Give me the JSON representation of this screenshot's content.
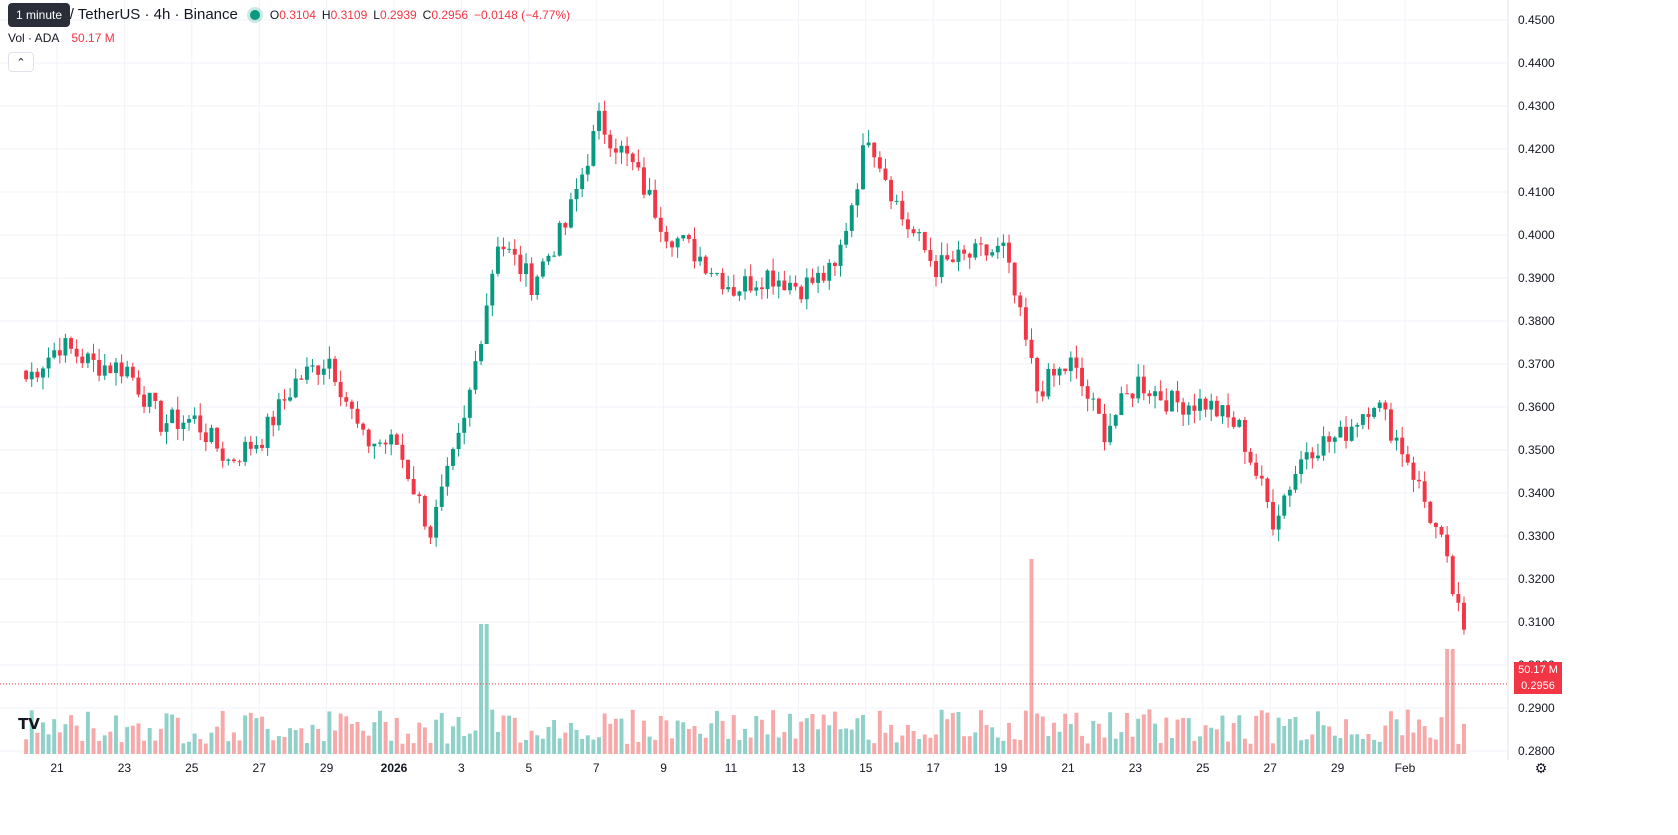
{
  "legend": {
    "symbol": "Cardano / TetherUS · 4h · Binance",
    "open_key": "O",
    "open": "0.3104",
    "high_key": "H",
    "high": "0.3109",
    "low_key": "L",
    "low": "0.2939",
    "close_key": "C",
    "close": "0.2956",
    "change": "−0.0148 (−4.77%)"
  },
  "volume_legend": {
    "label": "Vol · ADA",
    "value": "50.17 M"
  },
  "tooltip": "1 minute",
  "collapse_icon": "chevron-up-icon",
  "price_tags": {
    "volume": "50.17 M",
    "price": "0.2956"
  },
  "colors": {
    "up": "#089981",
    "down": "#f23645",
    "up_volume": "#8fd1c8",
    "down_volume": "#f7a9a9",
    "grid": "#f0f3fa",
    "axis_text": "#131722"
  },
  "chart_data": {
    "type": "candlestick",
    "symbol": "ADA/USDT",
    "interval": "4h",
    "y_axis_ticks": [
      "0.4500",
      "0.4400",
      "0.4300",
      "0.4200",
      "0.4100",
      "0.4000",
      "0.3900",
      "0.3800",
      "0.3700",
      "0.3600",
      "0.3500",
      "0.3400",
      "0.3300",
      "0.3200",
      "0.3100",
      "0.3000",
      "0.2900",
      "0.2800"
    ],
    "ylim": [
      0.28,
      0.45
    ],
    "x_axis_ticks": [
      "21",
      "23",
      "25",
      "27",
      "29",
      "2026",
      "3",
      "5",
      "7",
      "9",
      "11",
      "13",
      "15",
      "17",
      "19",
      "21",
      "23",
      "25",
      "27",
      "29",
      "Feb"
    ],
    "x_range": [
      "2025-12-20",
      "2026-02-01"
    ],
    "candles_anchor_closes": [
      {
        "date": "2025-12-20",
        "close": 0.3665
      },
      {
        "date": "2025-12-21",
        "close": 0.3745
      },
      {
        "date": "2025-12-22",
        "close": 0.37
      },
      {
        "date": "2025-12-23",
        "close": 0.369
      },
      {
        "date": "2025-12-24",
        "close": 0.3565
      },
      {
        "date": "2025-12-25",
        "close": 0.357
      },
      {
        "date": "2025-12-26",
        "close": 0.3475
      },
      {
        "date": "2025-12-27",
        "close": 0.353
      },
      {
        "date": "2025-12-28",
        "close": 0.366
      },
      {
        "date": "2025-12-29",
        "close": 0.3715
      },
      {
        "date": "2025-12-30",
        "close": 0.352
      },
      {
        "date": "2025-12-31",
        "close": 0.3515
      },
      {
        "date": "2026-01-01",
        "close": 0.331
      },
      {
        "date": "2026-01-02",
        "close": 0.356
      },
      {
        "date": "2026-01-03",
        "close": 0.399
      },
      {
        "date": "2026-01-04",
        "close": 0.389
      },
      {
        "date": "2026-01-05",
        "close": 0.402
      },
      {
        "date": "2026-01-06",
        "close": 0.4265
      },
      {
        "date": "2026-01-07",
        "close": 0.416
      },
      {
        "date": "2026-01-08",
        "close": 0.401
      },
      {
        "date": "2026-01-09",
        "close": 0.395
      },
      {
        "date": "2026-01-10",
        "close": 0.3875
      },
      {
        "date": "2026-01-11",
        "close": 0.391
      },
      {
        "date": "2026-01-12",
        "close": 0.388
      },
      {
        "date": "2026-01-13",
        "close": 0.3915
      },
      {
        "date": "2026-01-14",
        "close": 0.424
      },
      {
        "date": "2026-01-15",
        "close": 0.404
      },
      {
        "date": "2026-01-16",
        "close": 0.3925
      },
      {
        "date": "2026-01-17",
        "close": 0.395
      },
      {
        "date": "2026-01-18",
        "close": 0.3965
      },
      {
        "date": "2026-01-19",
        "close": 0.364
      },
      {
        "date": "2026-01-20",
        "close": 0.37
      },
      {
        "date": "2026-01-21",
        "close": 0.3545
      },
      {
        "date": "2026-01-22",
        "close": 0.366
      },
      {
        "date": "2026-01-23",
        "close": 0.361
      },
      {
        "date": "2026-01-24",
        "close": 0.361
      },
      {
        "date": "2026-01-25",
        "close": 0.355
      },
      {
        "date": "2026-01-26",
        "close": 0.334
      },
      {
        "date": "2026-01-27",
        "close": 0.3505
      },
      {
        "date": "2026-01-28",
        "close": 0.353
      },
      {
        "date": "2026-01-29",
        "close": 0.362
      },
      {
        "date": "2026-01-30",
        "close": 0.348
      },
      {
        "date": "2026-01-31",
        "close": 0.328
      },
      {
        "date": "2026-02-01",
        "close": 0.2956
      }
    ],
    "volume_peaks_adam": [
      {
        "date": "2026-01-03",
        "volume": "~150M"
      },
      {
        "date": "2026-01-19",
        "volume": "~270M"
      },
      {
        "date": "2026-02-01",
        "volume": "50.17M"
      }
    ],
    "last_price": 0.2956,
    "last_volume": "50.17 M",
    "grid": true
  }
}
